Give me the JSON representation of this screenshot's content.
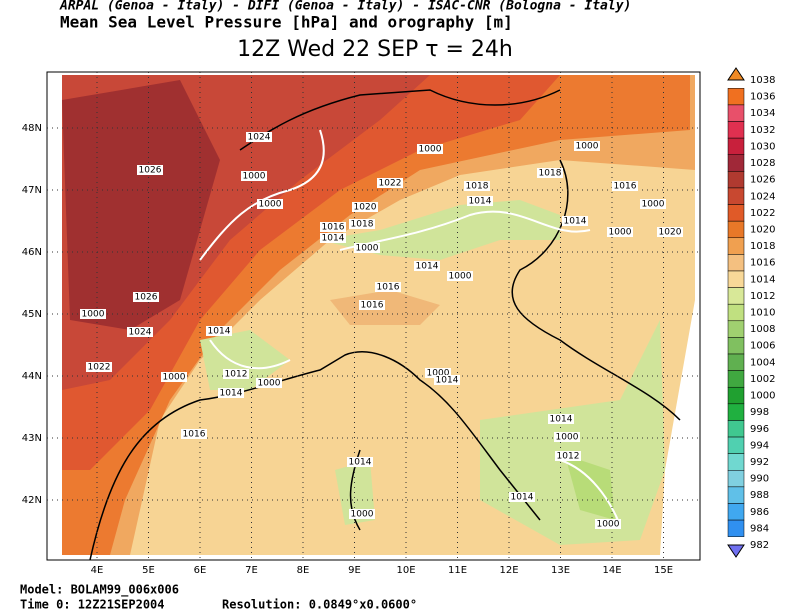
{
  "header": {
    "credits": "ARPAL (Genoa - Italy)  -  DIFI (Genoa - Italy)  -  ISAC-CNR (Bologna - Italy)",
    "subtitle": "Mean Sea Level Pressure [hPa] and orography [m]",
    "title": "12Z Wed 22 SEP  τ = 24h"
  },
  "map": {
    "lon_labels": [
      "4E",
      "5E",
      "6E",
      "7E",
      "8E",
      "9E",
      "10E",
      "11E",
      "12E",
      "13E",
      "14E",
      "15E"
    ],
    "lat_labels": [
      "48N",
      "47N",
      "46N",
      "45N",
      "44N",
      "43N",
      "42N"
    ],
    "contour_labels": [
      "1024",
      "1026",
      "1000",
      "1000",
      "1022",
      "1000",
      "1000",
      "1018",
      "1018",
      "1014",
      "1016",
      "1000",
      "1020",
      "1018",
      "1016",
      "1014",
      "1000",
      "1014",
      "1000",
      "1014",
      "1000",
      "1020",
      "1026",
      "1000",
      "1016",
      "1016",
      "1014",
      "1024",
      "1022",
      "1000",
      "1012",
      "1000",
      "1014",
      "1000",
      "1014",
      "1016",
      "1014",
      "1000",
      "1014",
      "1012",
      "1014",
      "1000",
      "1000"
    ]
  },
  "colorbar": {
    "labels": [
      "1038",
      "1036",
      "1034",
      "1032",
      "1030",
      "1028",
      "1026",
      "1024",
      "1022",
      "1020",
      "1018",
      "1016",
      "1014",
      "1012",
      "1010",
      "1008",
      "1006",
      "1004",
      "1002",
      "1000",
      "998",
      "996",
      "994",
      "992",
      "990",
      "988",
      "986",
      "984",
      "982"
    ],
    "colors": [
      "#f08a24",
      "#f07020",
      "#e8506a",
      "#e03050",
      "#c8203c",
      "#a02838",
      "#b03a30",
      "#c84830",
      "#e05a28",
      "#e87828",
      "#f0a050",
      "#f4c080",
      "#f8d898",
      "#d8e898",
      "#c0e080",
      "#a0d070",
      "#80c060",
      "#60b050",
      "#40a840",
      "#20a030",
      "#20b040",
      "#40c890",
      "#50d0b0",
      "#70d8d0",
      "#80d0e0",
      "#60c0e8",
      "#40a8f0",
      "#3090f0",
      "#7070f0"
    ]
  },
  "footer": {
    "model": "Model: BOLAM99_006x006",
    "time": "Time 0: 12Z21SEP2004",
    "resolution": "Resolution: 0.0849°x0.0600°"
  }
}
